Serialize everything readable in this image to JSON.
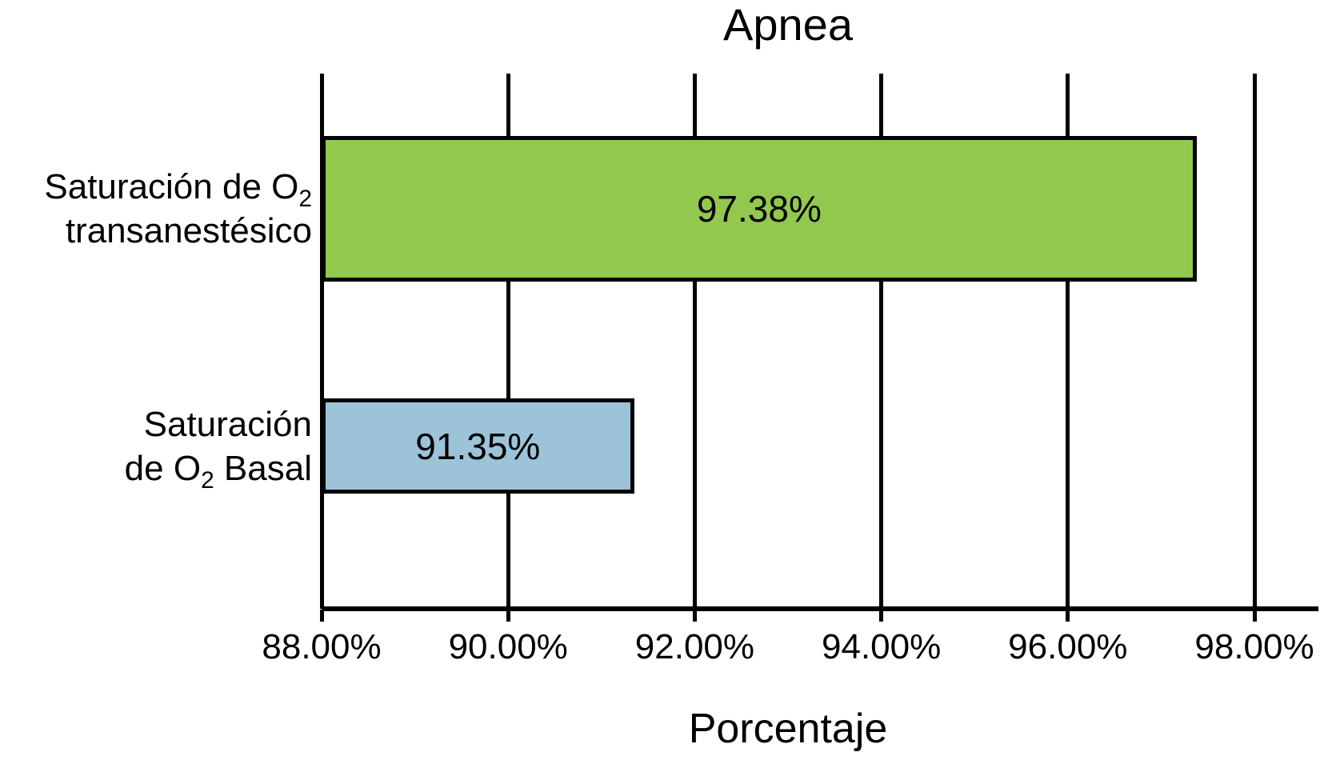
{
  "figure": {
    "background": "#FFFFFF",
    "axis_color": "#000000",
    "text_color": "#000000"
  },
  "chart_data": {
    "type": "bar",
    "orientation": "horizontal",
    "title": "Apnea",
    "xlabel": "Porcentaje",
    "ylabel": "",
    "xlim": [
      88,
      98
    ],
    "x_ticks": [
      88,
      90,
      92,
      94,
      96,
      98
    ],
    "x_tick_labels": [
      "88.00%",
      "90.00%",
      "92.00%",
      "94.00%",
      "96.00%",
      "98.00%"
    ],
    "grid": "vertical",
    "legend": "none",
    "categories": [
      "Saturación de O2 transanestésico",
      "Saturación de O2 Basal"
    ],
    "values": [
      97.38,
      91.35
    ],
    "value_labels": [
      "97.38%",
      "91.35%"
    ],
    "bar_colors": [
      "#93C84E",
      "#9DC3D9"
    ],
    "bar_border_color": "#000000",
    "category_label_lines": [
      {
        "l1a": "Saturación de O",
        "l1sub": "2",
        "l1b": "",
        "l2a": "transanestésico",
        "l2sub": "",
        "l2b": ""
      },
      {
        "l1a": "Saturación",
        "l1sub": "",
        "l1b": "",
        "l2a": "de O",
        "l2sub": "2",
        "l2b": " Basal"
      }
    ]
  }
}
